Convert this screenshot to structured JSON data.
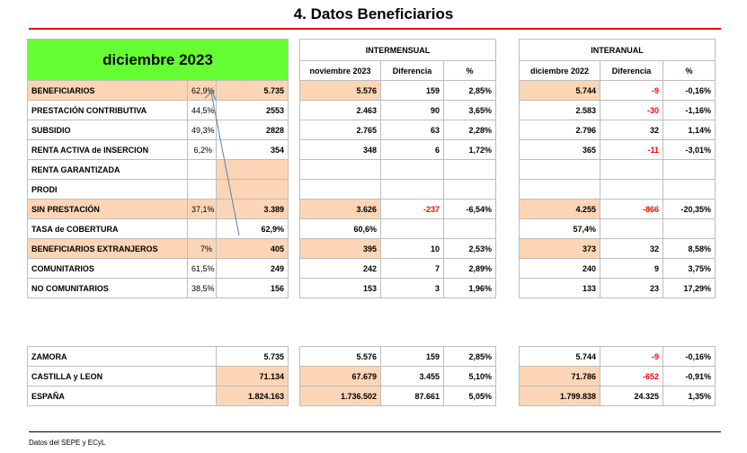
{
  "page": {
    "title": "4.  Datos Beneficiarios",
    "source": "Datos del SEPE y ECyL"
  },
  "left": {
    "month_label": "diciembre 2023",
    "rows": [
      {
        "label": "BENEFICIARIOS",
        "pct": "62,9%",
        "value": "5.735"
      },
      {
        "label": "PRESTACIÓN CONTRIBUTIVA",
        "pct": "44,5%",
        "value": "2553"
      },
      {
        "label": "SUBSIDIO",
        "pct": "49,3%",
        "value": "2828"
      },
      {
        "label": "RENTA ACTIVA de INSERCION",
        "pct": "6,2%",
        "value": "354"
      },
      {
        "label": "RENTA GARANTIZADA",
        "pct": "",
        "value": ""
      },
      {
        "label": "PRODI",
        "pct": "",
        "value": ""
      },
      {
        "label": "SIN PRESTACIÓN",
        "pct": "37,1%",
        "value": "3.389"
      },
      {
        "label": "TASA de COBERTURA",
        "pct": "",
        "value": "62,9%"
      },
      {
        "label": "BENEFICIARIOS EXTRANJEROS",
        "pct": "7%",
        "value": "405"
      },
      {
        "label": "COMUNITARIOS",
        "pct": "61,5%",
        "value": "249"
      },
      {
        "label": "NO COMUNITARIOS",
        "pct": "38,5%",
        "value": "156"
      }
    ],
    "region_rows": [
      {
        "label": "ZAMORA",
        "value": "5.735"
      },
      {
        "label": "CASTILLA y LEON",
        "value": "71.134"
      },
      {
        "label": "ESPAÑA",
        "value": "1.824.163"
      }
    ]
  },
  "intermensual": {
    "title": "INTERMENSUAL",
    "headers": [
      "noviembre 2023",
      "Diferencia",
      "%"
    ],
    "rows": [
      [
        "5.576",
        "159",
        "2,85%"
      ],
      [
        "2.463",
        "90",
        "3,65%"
      ],
      [
        "2.765",
        "63",
        "2,28%"
      ],
      [
        "348",
        "6",
        "1,72%"
      ],
      [
        "",
        "",
        ""
      ],
      [
        "",
        "",
        ""
      ],
      [
        "3.626",
        "-237",
        "-6,54%"
      ],
      [
        "60,6%",
        "",
        ""
      ],
      [
        "395",
        "10",
        "2,53%"
      ],
      [
        "242",
        "7",
        "2,89%"
      ],
      [
        "153",
        "3",
        "1,96%"
      ]
    ],
    "region_rows": [
      [
        "5.576",
        "159",
        "2,85%"
      ],
      [
        "67.679",
        "3.455",
        "5,10%"
      ],
      [
        "1.736.502",
        "87.661",
        "5,05%"
      ]
    ]
  },
  "interanual": {
    "title": "INTERANUAL",
    "headers": [
      "diciembre 2022",
      "Diferencia",
      "%"
    ],
    "rows": [
      [
        "5.744",
        "-9",
        "-0,16%"
      ],
      [
        "2.583",
        "-30",
        "-1,16%"
      ],
      [
        "2.796",
        "32",
        "1,14%"
      ],
      [
        "365",
        "-11",
        "-3,01%"
      ],
      [
        "",
        "",
        ""
      ],
      [
        "",
        "",
        ""
      ],
      [
        "4.255",
        "-866",
        "-20,35%"
      ],
      [
        "57,4%",
        "",
        ""
      ],
      [
        "373",
        "32",
        "8,58%"
      ],
      [
        "240",
        "9",
        "3,75%"
      ],
      [
        "133",
        "23",
        "17,29%"
      ]
    ],
    "region_rows": [
      [
        "5.744",
        "-9",
        "-0,16%"
      ],
      [
        "71.786",
        "-652",
        "-0,91%"
      ],
      [
        "1.799.838",
        "24.325",
        "1,35%"
      ]
    ]
  },
  "colors": {
    "highlight": "#fbd5b5",
    "header_green": "#66ff33",
    "negative": "#ff0000",
    "rule_red": "#e00000"
  }
}
